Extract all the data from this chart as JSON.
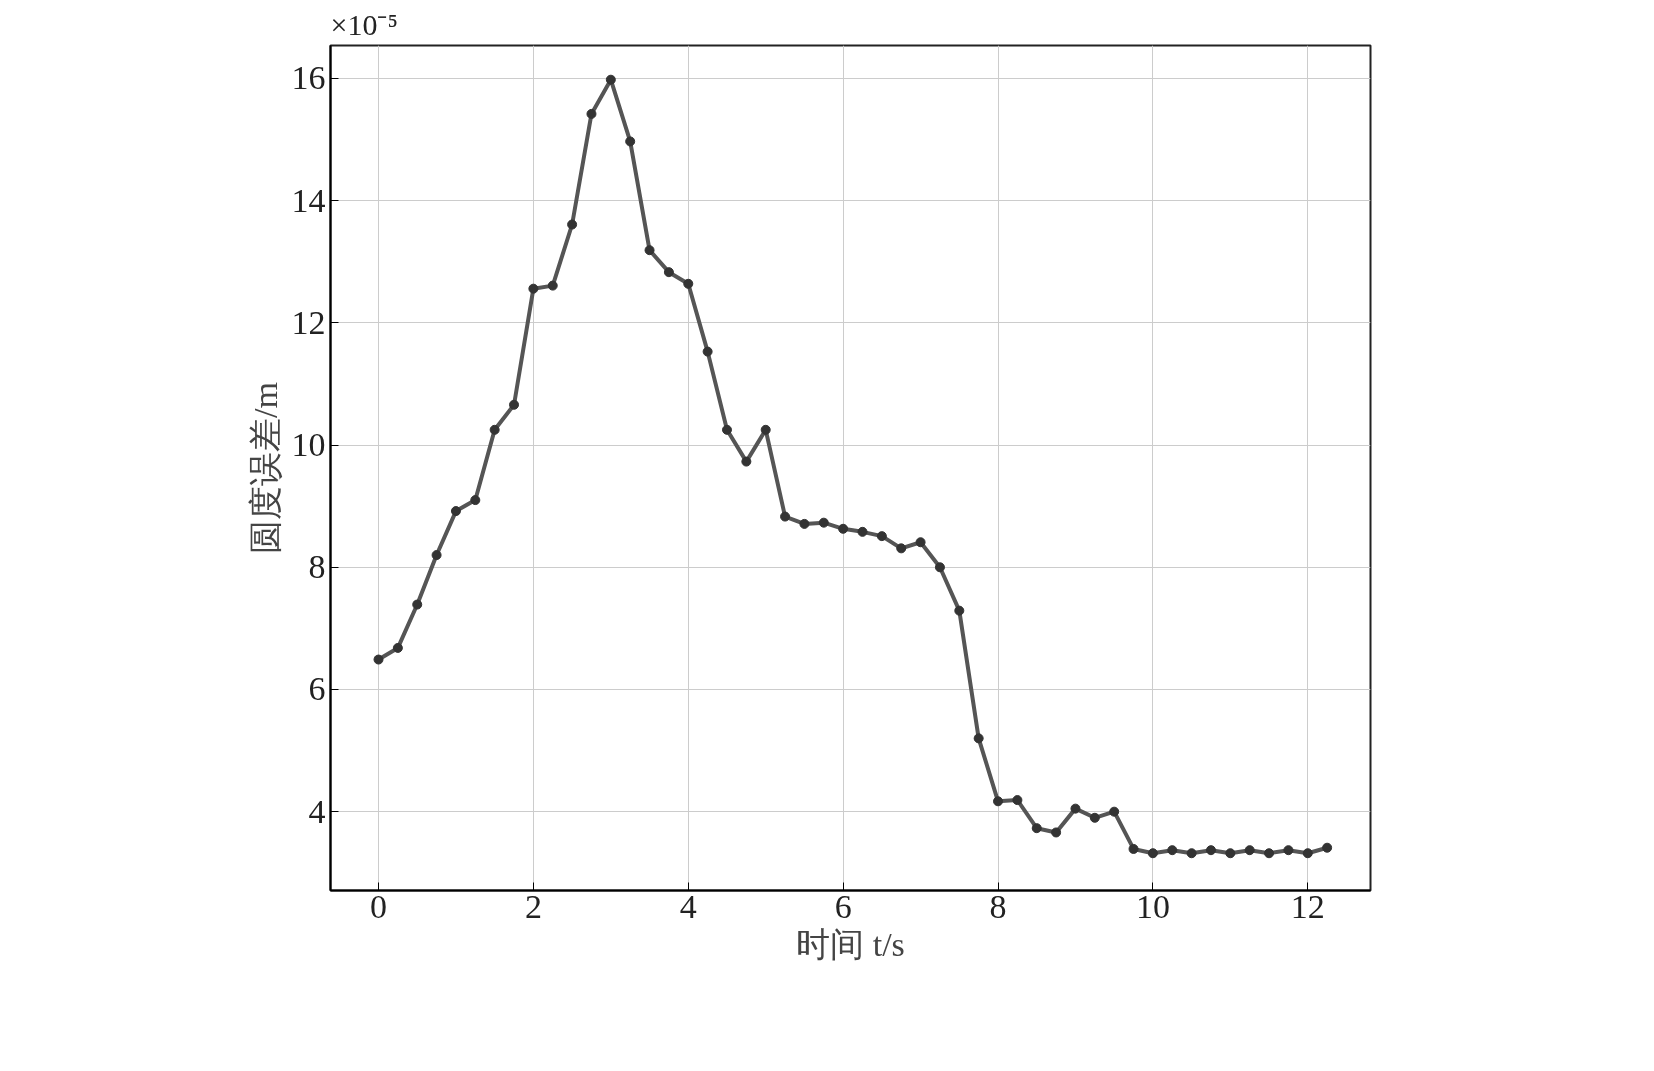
{
  "chart_data": {
    "type": "line",
    "ylabel": "圆度误差/m",
    "xlabel": "时间 t/s",
    "annotations": [
      "×10⁻⁵"
    ],
    "xlim": [
      -0.62,
      12.81
    ],
    "ylim": [
      2.71,
      16.54
    ],
    "xticks": [
      0,
      2,
      4,
      6,
      8,
      10,
      12
    ],
    "yticks": [
      4,
      6,
      8,
      10,
      12,
      14,
      16
    ],
    "grid": true,
    "marker": "circle",
    "line_style": "solid",
    "series": [
      {
        "color": "#555555",
        "x": [
          0,
          0.25,
          0.5,
          0.75,
          1,
          1.25,
          1.5,
          1.75,
          2,
          2.25,
          2.5,
          2.75,
          3,
          3.25,
          3.5,
          3.75,
          4,
          4.25,
          4.5,
          4.75,
          5,
          5.25,
          5.5,
          5.75,
          6,
          6.25,
          6.5,
          6.75,
          7,
          7.25,
          7.5,
          7.75,
          8,
          8.25,
          8.5,
          8.75,
          9,
          9.25,
          9.5,
          9.75,
          10,
          10.25,
          10.5,
          10.75,
          11,
          11.25,
          11.5,
          11.75,
          12,
          12.25
        ],
        "values": [
          6.49,
          6.68,
          7.39,
          8.2,
          8.92,
          9.1,
          10.25,
          10.66,
          12.56,
          12.61,
          13.61,
          15.42,
          15.98,
          14.97,
          13.19,
          12.83,
          12.64,
          11.53,
          10.25,
          9.73,
          10.25,
          8.83,
          8.71,
          8.73,
          8.63,
          8.58,
          8.51,
          8.31,
          8.41,
          8.0,
          7.29,
          5.2,
          4.17,
          4.19,
          3.73,
          3.66,
          4.05,
          3.9,
          4.0,
          3.39,
          3.32,
          3.37,
          3.32,
          3.37,
          3.32,
          3.37,
          3.32,
          3.37,
          3.32,
          3.41
        ]
      }
    ]
  }
}
